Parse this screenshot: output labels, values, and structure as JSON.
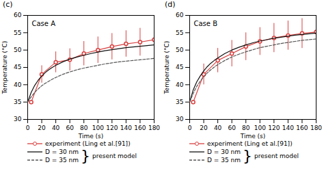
{
  "chart_data": [
    {
      "type": "line",
      "title": "Case A",
      "annotations": [
        "(c)",
        "}",
        "present model"
      ],
      "xlabel": "Time (s)",
      "ylabel": "Temperature (°C)",
      "xlim": [
        0,
        180
      ],
      "ylim": [
        30,
        60
      ],
      "xticks": [
        0,
        20,
        40,
        60,
        80,
        100,
        120,
        140,
        160,
        180
      ],
      "yticks": [
        30,
        35,
        40,
        45,
        50,
        55,
        60
      ],
      "series": [
        {
          "name": "experiment (Ling et al.[91])",
          "color": "#d94040",
          "marker": "circle",
          "line_style": "solid",
          "x": [
            5,
            20,
            40,
            60,
            80,
            100,
            120,
            140,
            160,
            180
          ],
          "values": [
            35.0,
            43.0,
            46.5,
            47.2,
            49.0,
            50.0,
            51.0,
            51.8,
            52.3,
            53.0
          ],
          "errors": [
            0.3,
            2.5,
            3.0,
            3.2,
            3.5,
            3.8,
            3.8,
            3.8,
            4.0,
            3.8
          ]
        },
        {
          "name": "D = 30 nm",
          "color": "#111111",
          "line_style": "solid",
          "x": [
            0,
            5,
            10,
            15,
            20,
            25,
            30,
            35,
            40,
            50,
            60,
            70,
            80,
            90,
            100,
            110,
            120,
            130,
            140,
            150,
            160,
            170,
            180
          ],
          "values": [
            35.0,
            37.8,
            39.8,
            41.3,
            42.5,
            43.5,
            44.3,
            45.0,
            45.6,
            46.6,
            47.4,
            48.0,
            48.5,
            49.0,
            49.4,
            49.8,
            50.1,
            50.4,
            50.7,
            50.9,
            51.1,
            51.3,
            51.5
          ]
        },
        {
          "name": "D = 35 nm",
          "color": "#555555",
          "line_style": "dashed",
          "x": [
            0,
            5,
            10,
            15,
            20,
            25,
            30,
            35,
            40,
            50,
            60,
            70,
            80,
            90,
            100,
            110,
            120,
            130,
            140,
            150,
            160,
            170,
            180
          ],
          "values": [
            35.0,
            36.5,
            37.8,
            38.8,
            39.7,
            40.4,
            41.0,
            41.6,
            42.1,
            43.0,
            43.7,
            44.3,
            44.8,
            45.2,
            45.6,
            46.0,
            46.3,
            46.6,
            46.8,
            47.0,
            47.2,
            47.4,
            47.6
          ]
        }
      ]
    },
    {
      "type": "line",
      "title": "Case B",
      "annotations": [
        "(d)",
        "}",
        "present model"
      ],
      "xlabel": "Time (s)",
      "ylabel": "Temperature (°C)",
      "xlim": [
        0,
        180
      ],
      "ylim": [
        30,
        60
      ],
      "xticks": [
        0,
        20,
        40,
        60,
        80,
        100,
        120,
        140,
        160,
        180
      ],
      "yticks": [
        30,
        35,
        40,
        45,
        50,
        55,
        60
      ],
      "series": [
        {
          "name": "experiment (Ling et al.[91])",
          "color": "#d94040",
          "marker": "circle",
          "line_style": "solid",
          "x": [
            5,
            20,
            40,
            60,
            80,
            100,
            120,
            140,
            160,
            180
          ],
          "values": [
            35.0,
            43.0,
            47.0,
            49.0,
            51.0,
            52.5,
            53.5,
            54.2,
            54.8,
            55.2
          ],
          "errors": [
            0.3,
            3.0,
            3.5,
            3.8,
            4.0,
            4.0,
            4.2,
            4.2,
            4.3,
            4.3
          ]
        },
        {
          "name": "D = 30 nm",
          "color": "#111111",
          "line_style": "solid",
          "x": [
            0,
            5,
            10,
            15,
            20,
            25,
            30,
            35,
            40,
            50,
            60,
            70,
            80,
            90,
            100,
            110,
            120,
            130,
            140,
            150,
            160,
            170,
            180
          ],
          "values": [
            35.0,
            38.5,
            40.8,
            42.5,
            44.0,
            45.2,
            46.2,
            47.0,
            47.7,
            49.0,
            50.0,
            50.8,
            51.5,
            52.1,
            52.6,
            53.0,
            53.4,
            53.7,
            54.0,
            54.3,
            54.5,
            54.7,
            54.9
          ]
        },
        {
          "name": "D = 35 nm",
          "color": "#555555",
          "line_style": "dashed",
          "x": [
            0,
            5,
            10,
            15,
            20,
            25,
            30,
            35,
            40,
            50,
            60,
            70,
            80,
            90,
            100,
            110,
            120,
            130,
            140,
            150,
            160,
            170,
            180
          ],
          "values": [
            35.0,
            37.5,
            39.5,
            41.0,
            42.3,
            43.4,
            44.3,
            45.1,
            45.8,
            47.0,
            48.0,
            48.8,
            49.5,
            50.1,
            50.7,
            51.1,
            51.5,
            51.9,
            52.2,
            52.5,
            52.8,
            53.0,
            53.2
          ]
        }
      ]
    }
  ]
}
